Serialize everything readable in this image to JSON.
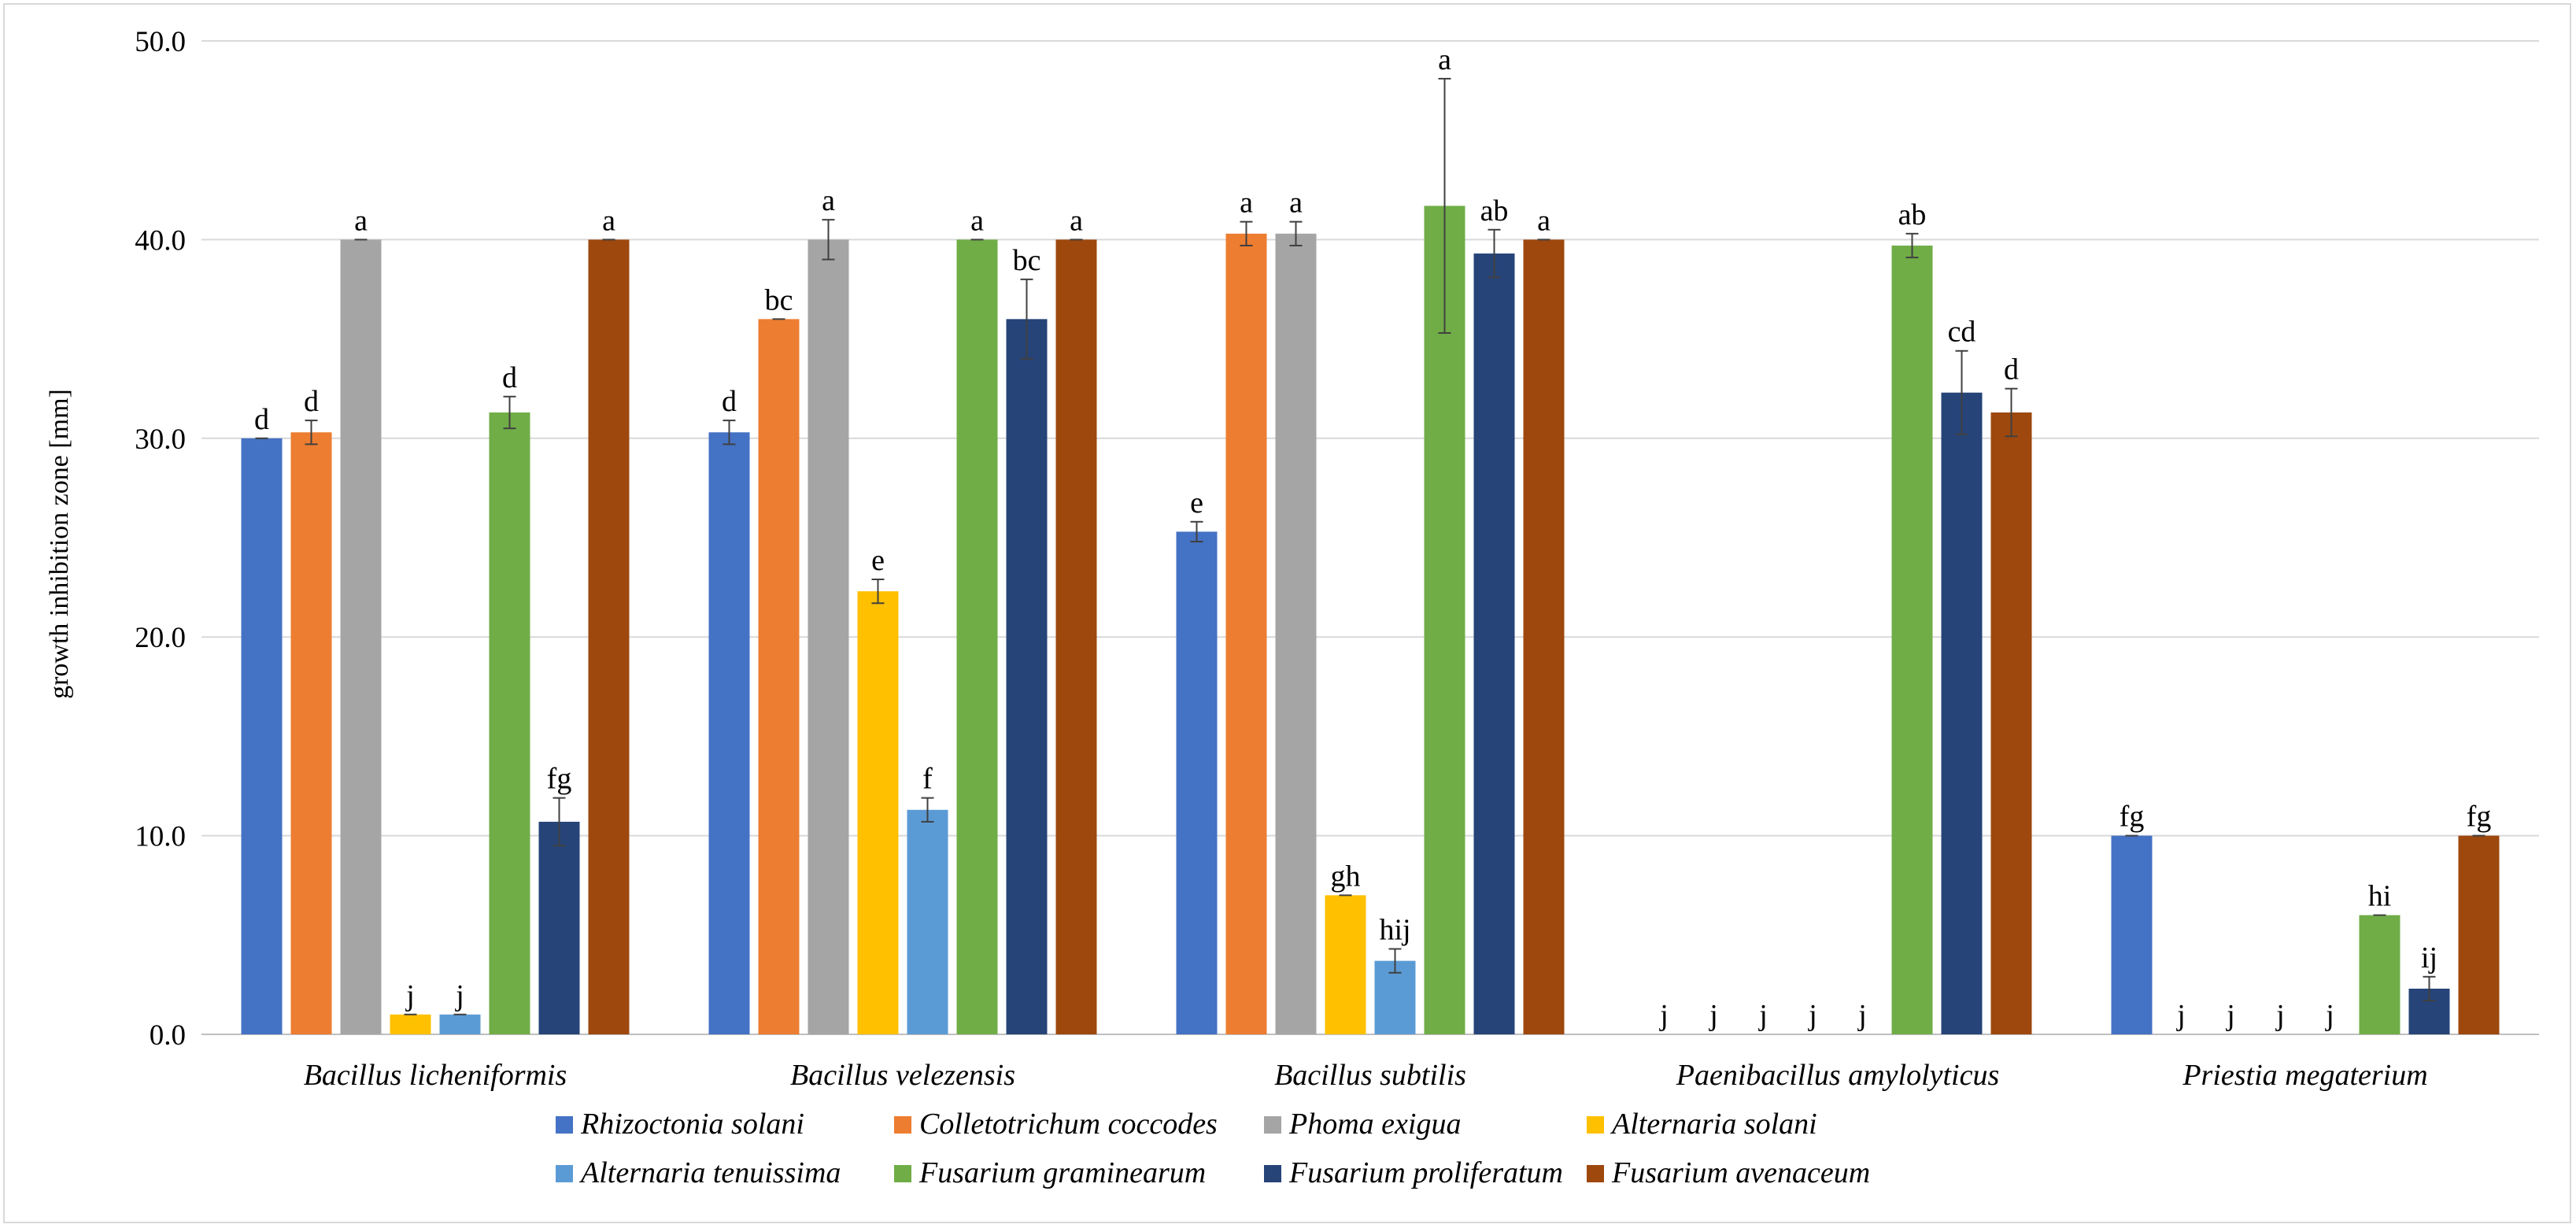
{
  "chart_data": {
    "type": "bar",
    "title": "",
    "xlabel": "",
    "ylabel": "growth inhibition zone [mm]",
    "ylim": [
      0,
      50
    ],
    "yticks": [
      "0.0",
      "10.0",
      "20.0",
      "30.0",
      "40.0",
      "50.0"
    ],
    "grid": "horizontal",
    "legend_position": "bottom",
    "categories": [
      "Bacillus licheniformis",
      "Bacillus velezensis",
      "Bacillus subtilis",
      "Paenibacillus amylolyticus",
      "Priestia megaterium"
    ],
    "series": [
      {
        "name": "Rhizoctonia solani",
        "color": "#4472c4",
        "values": [
          30.0,
          30.3,
          25.3,
          0,
          10.0
        ],
        "errors": [
          0,
          0.6,
          0.5,
          0,
          0
        ],
        "labels": [
          "d",
          "d",
          "e",
          "j",
          "fg"
        ]
      },
      {
        "name": "Colletotrichum coccodes",
        "color": "#ed7d31",
        "values": [
          30.3,
          36.0,
          40.3,
          0,
          0
        ],
        "errors": [
          0.6,
          0,
          0.6,
          0,
          0
        ],
        "labels": [
          "d",
          "bc",
          "a",
          "j",
          "j"
        ]
      },
      {
        "name": "Phoma exigua",
        "color": "#a5a5a5",
        "values": [
          40.0,
          40.0,
          40.3,
          0,
          0
        ],
        "errors": [
          0,
          1.0,
          0.6,
          0,
          0
        ],
        "labels": [
          "a",
          "a",
          "a",
          "j",
          "j"
        ]
      },
      {
        "name": "Alternaria solani",
        "color": "#ffc000",
        "values": [
          1.0,
          22.3,
          7.0,
          0,
          0
        ],
        "errors": [
          0,
          0.6,
          0,
          0,
          0
        ],
        "labels": [
          "j",
          "e",
          "gh",
          "j",
          "j"
        ]
      },
      {
        "name": "Alternaria tenuissima",
        "color": "#5b9bd5",
        "values": [
          1.0,
          11.3,
          3.7,
          0,
          0
        ],
        "errors": [
          0,
          0.6,
          0.6,
          0,
          0
        ],
        "labels": [
          "j",
          "f",
          "hij",
          "j",
          "j"
        ]
      },
      {
        "name": "Fusarium graminearum",
        "color": "#70ad47",
        "values": [
          31.3,
          40.0,
          41.7,
          39.7,
          6.0
        ],
        "errors": [
          0.8,
          0,
          6.4,
          0.6,
          0
        ],
        "labels": [
          "d",
          "a",
          "a",
          "ab",
          "hi"
        ]
      },
      {
        "name": "Fusarium proliferatum",
        "color": "#264478",
        "values": [
          10.7,
          36.0,
          39.3,
          32.3,
          2.3
        ],
        "errors": [
          1.2,
          2.0,
          1.2,
          2.1,
          0.6
        ],
        "labels": [
          "fg",
          "bc",
          "ab",
          "cd",
          "ij"
        ]
      },
      {
        "name": "Fusarium avenaceum",
        "color": "#9e480e",
        "values": [
          40.0,
          40.0,
          40.0,
          31.3,
          10.0
        ],
        "errors": [
          0,
          0,
          0,
          1.2,
          0
        ],
        "labels": [
          "a",
          "a",
          "a",
          "d",
          "fg"
        ]
      }
    ]
  }
}
